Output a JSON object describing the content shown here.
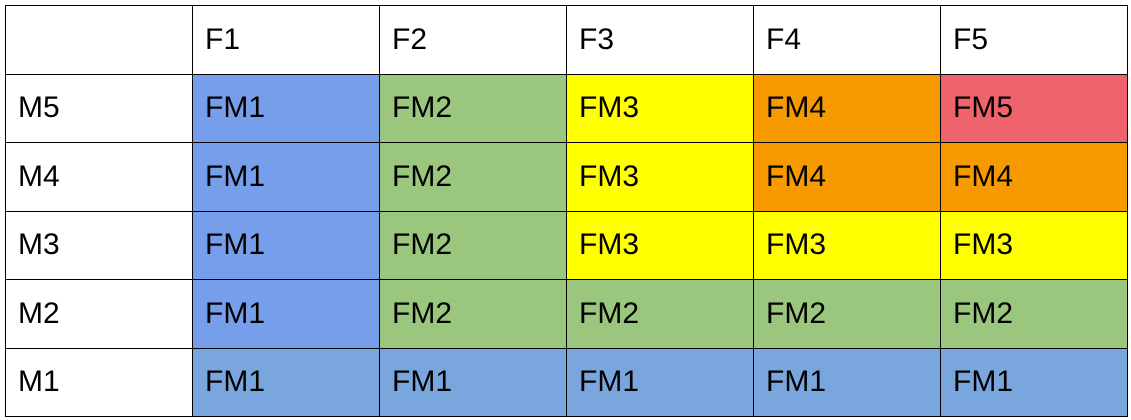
{
  "table": {
    "corner": "",
    "columns": [
      "F1",
      "F2",
      "F3",
      "F4",
      "F5"
    ],
    "colors": {
      "FM1": "#779eeb",
      "FM1_M1": "#79a7dd",
      "FM2": "#9bc67e",
      "FM3": "#ffff00",
      "FM4": "#f69a00",
      "FM5": "#ef646c"
    },
    "rows": [
      {
        "label": "M5",
        "cells": [
          {
            "text": "FM1",
            "color": "#779eeb"
          },
          {
            "text": "FM2",
            "color": "#9bc67e"
          },
          {
            "text": "FM3",
            "color": "#ffff00"
          },
          {
            "text": "FM4",
            "color": "#f69a00"
          },
          {
            "text": "FM5",
            "color": "#ef646c"
          }
        ]
      },
      {
        "label": "M4",
        "cells": [
          {
            "text": "FM1",
            "color": "#779eeb"
          },
          {
            "text": "FM2",
            "color": "#9bc67e"
          },
          {
            "text": "FM3",
            "color": "#ffff00"
          },
          {
            "text": "FM4",
            "color": "#f69a00"
          },
          {
            "text": "FM4",
            "color": "#f69a00"
          }
        ]
      },
      {
        "label": "M3",
        "cells": [
          {
            "text": "FM1",
            "color": "#779eeb"
          },
          {
            "text": "FM2",
            "color": "#9bc67e"
          },
          {
            "text": "FM3",
            "color": "#ffff00"
          },
          {
            "text": "FM3",
            "color": "#ffff00"
          },
          {
            "text": "FM3",
            "color": "#ffff00"
          }
        ]
      },
      {
        "label": "M2",
        "cells": [
          {
            "text": "FM1",
            "color": "#779eeb"
          },
          {
            "text": "FM2",
            "color": "#9bc67e"
          },
          {
            "text": "FM2",
            "color": "#9bc67e"
          },
          {
            "text": "FM2",
            "color": "#9bc67e"
          },
          {
            "text": "FM2",
            "color": "#9bc67e"
          }
        ]
      },
      {
        "label": "M1",
        "cells": [
          {
            "text": "FM1",
            "color": "#79a7dd"
          },
          {
            "text": "FM1",
            "color": "#79a7dd"
          },
          {
            "text": "FM1",
            "color": "#79a7dd"
          },
          {
            "text": "FM1",
            "color": "#79a7dd"
          },
          {
            "text": "FM1",
            "color": "#79a7dd"
          }
        ]
      }
    ]
  }
}
